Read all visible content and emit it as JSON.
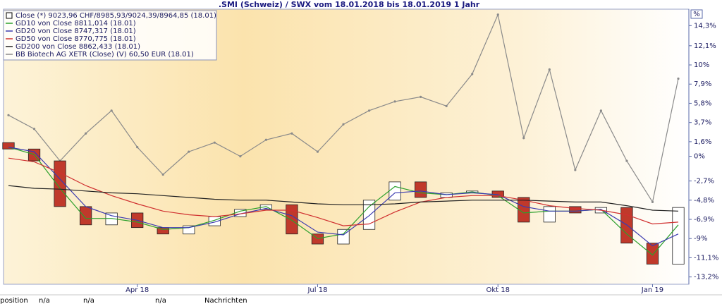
{
  "chart_data": {
    "type": "candlestick",
    "title": ".SMI (Schweiz) / SWX vom 18.01.2018 bis 18.01.2019 1 Jahr",
    "y_unit": "%",
    "categories": [
      null,
      null,
      null,
      null,
      null,
      "Apr 18",
      null,
      null,
      null,
      null,
      null,
      null,
      "Jul 18",
      null,
      null,
      null,
      null,
      null,
      null,
      "Okt 18",
      null,
      null,
      null,
      null,
      null,
      "Jan 19",
      null
    ],
    "ylim": [
      -14,
      16.1
    ],
    "yticks": [
      {
        "value": 14.3,
        "label": "14,3%"
      },
      {
        "value": 12.1,
        "label": "12,1%"
      },
      {
        "value": 10,
        "label": "10%"
      },
      {
        "value": 7.9,
        "label": "7,9%"
      },
      {
        "value": 5.8,
        "label": "5,8%"
      },
      {
        "value": 3.7,
        "label": "3,7%"
      },
      {
        "value": 1.6,
        "label": "1,6%"
      },
      {
        "value": 0,
        "label": "0%"
      },
      {
        "value": -2.7,
        "label": "-2,7%"
      },
      {
        "value": -4.8,
        "label": "-4,8%"
      },
      {
        "value": -6.9,
        "label": "-6,9%"
      },
      {
        "value": -9,
        "label": "-9%"
      },
      {
        "value": -11.1,
        "label": "-11,1%"
      },
      {
        "value": -13.2,
        "label": "-13,2%"
      }
    ],
    "grid": false,
    "series": [
      {
        "name": "Close (*) 9023,96 CHF/8985,93/9024,39/8964,85 (18.01)",
        "type": "candlestick",
        "color": "#c0392b",
        "open": [
          1.5,
          0.8,
          -0.5,
          -5.5,
          -7.5,
          -6.2,
          -7.8,
          -8.5,
          -7.6,
          -6.6,
          -5.8,
          -5.3,
          -8.5,
          -9.6,
          -8.0,
          -4.8,
          -2.8,
          -4.5,
          -4.0,
          -3.8,
          -4.5,
          -7.2,
          -5.5,
          -6.2,
          -5.6,
          -9.5,
          -11.8
        ],
        "close": [
          0.8,
          -0.5,
          -5.5,
          -7.5,
          -6.2,
          -7.8,
          -8.5,
          -7.6,
          -6.6,
          -5.8,
          -5.3,
          -8.5,
          -9.6,
          -8.0,
          -4.8,
          -2.8,
          -4.5,
          -4.0,
          -3.8,
          -4.5,
          -7.2,
          -5.5,
          -6.2,
          -5.6,
          -9.5,
          -11.8,
          -5.6
        ]
      },
      {
        "name": "GD10 von Close 8811,014 (18.01)",
        "type": "line",
        "color": "#2ca02c",
        "values": [
          1.0,
          0.2,
          -3.5,
          -6.8,
          -6.8,
          -7.2,
          -8.0,
          -7.8,
          -7.0,
          -6.0,
          -5.5,
          -7.0,
          -9.0,
          -8.5,
          -5.5,
          -3.3,
          -4.0,
          -4.2,
          -3.9,
          -4.3,
          -6.2,
          -6.0,
          -6.0,
          -5.8,
          -8.5,
          -10.8,
          -7.5
        ]
      },
      {
        "name": "GD20 von Close 8747,317 (18.01)",
        "type": "line",
        "color": "#3b3bb0",
        "values": [
          1.0,
          0.5,
          -2.5,
          -5.5,
          -6.5,
          -7.0,
          -7.8,
          -7.8,
          -7.2,
          -6.3,
          -5.7,
          -6.5,
          -8.3,
          -8.6,
          -6.5,
          -4.0,
          -3.8,
          -4.2,
          -4.0,
          -4.2,
          -5.5,
          -6.0,
          -6.0,
          -5.8,
          -7.5,
          -9.8,
          -8.5
        ]
      },
      {
        "name": "GD50 von Close 8770,775 (18.01)",
        "type": "line",
        "color": "#d03030",
        "values": [
          -0.2,
          -0.6,
          -1.8,
          -3.2,
          -4.3,
          -5.2,
          -6.0,
          -6.4,
          -6.6,
          -6.3,
          -5.9,
          -5.9,
          -6.7,
          -7.6,
          -7.4,
          -6.1,
          -5.0,
          -4.5,
          -4.3,
          -4.3,
          -4.8,
          -5.4,
          -5.7,
          -5.9,
          -6.4,
          -7.4,
          -7.2
        ]
      },
      {
        "name": "GD200 von Close 8862,433 (18.01)",
        "type": "line",
        "color": "#222222",
        "values": [
          -3.2,
          -3.5,
          -3.6,
          -3.8,
          -4.0,
          -4.1,
          -4.3,
          -4.5,
          -4.7,
          -4.8,
          -4.8,
          -5.0,
          -5.2,
          -5.3,
          -5.3,
          -5.2,
          -5.0,
          -4.9,
          -4.8,
          -4.8,
          -4.8,
          -4.9,
          -5.0,
          -5.0,
          -5.4,
          -5.9,
          -6.0
        ]
      },
      {
        "name": "BB Biotech AG XETR (Close) (V) 60,50 EUR (18.01)",
        "type": "line",
        "color": "#8a8a8a",
        "markers": true,
        "values": [
          4.5,
          3.0,
          -0.5,
          2.5,
          5.0,
          1.0,
          -2.0,
          0.5,
          1.5,
          0.0,
          1.8,
          2.5,
          0.5,
          3.5,
          5.0,
          6.0,
          6.5,
          5.5,
          9.0,
          15.5,
          2.0,
          9.5,
          -1.5,
          5.0,
          -0.5,
          -5.0,
          8.5
        ]
      }
    ]
  },
  "status_bar": [
    "rposition",
    "n/a",
    "n/a",
    "n/a",
    "Nachrichten"
  ]
}
